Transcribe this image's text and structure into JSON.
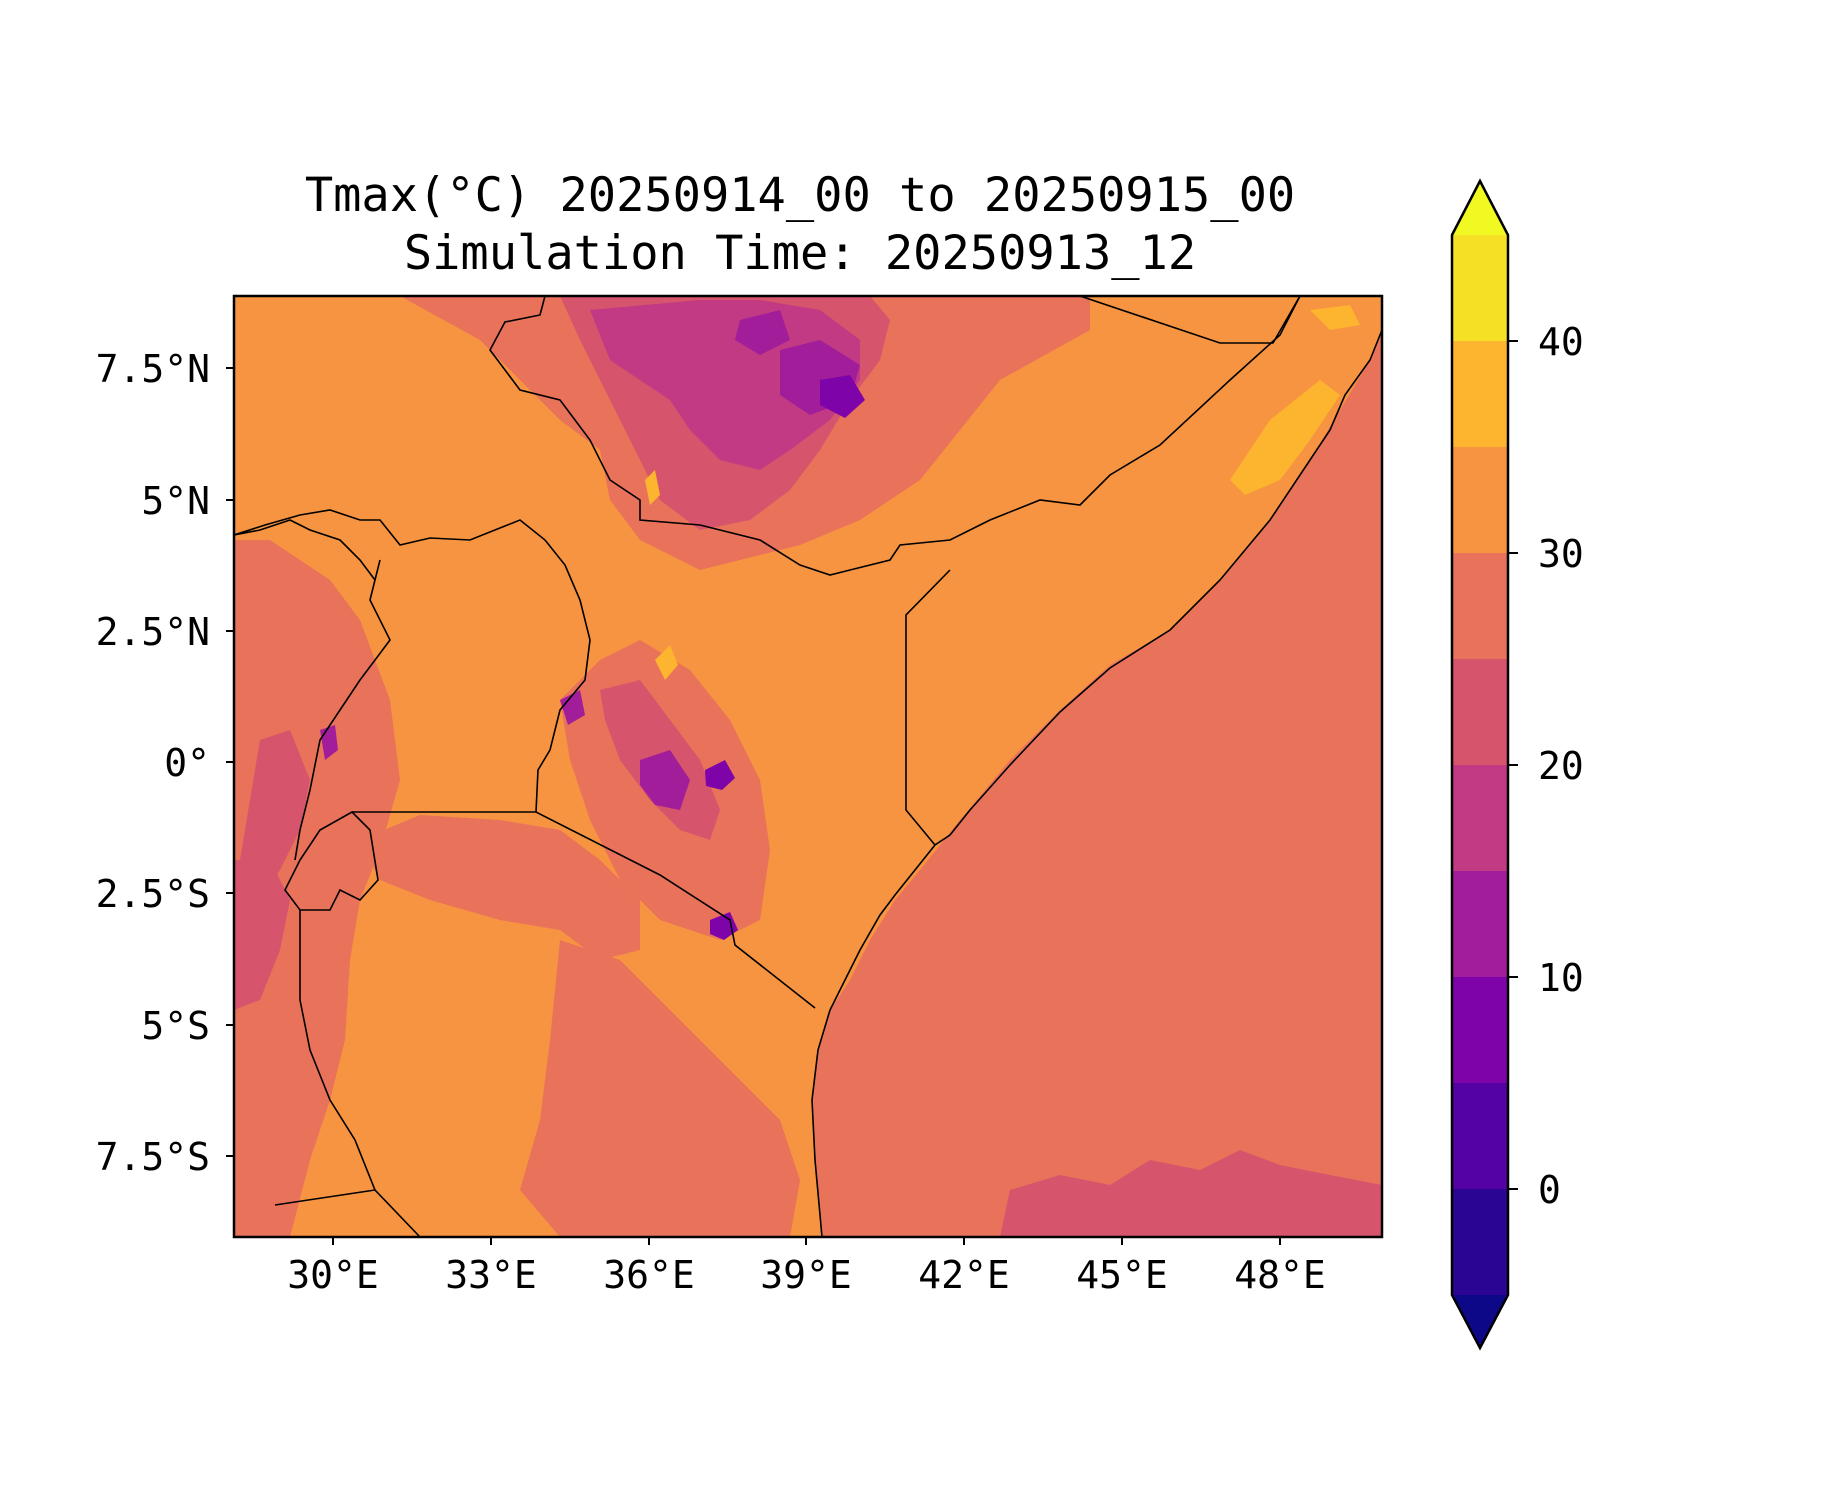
{
  "title": {
    "line1": "Tmax(°C) 20250914_00 to 20250915_00",
    "line2": "Simulation Time: 20250913_12"
  },
  "map": {
    "lat_labels": [
      "7.5°N",
      "5°N",
      "2.5°N",
      "0°",
      "2.5°S",
      "5°S",
      "7.5°S"
    ],
    "lon_labels": [
      "30°E",
      "33°E",
      "36°E",
      "39°E",
      "42°E",
      "45°E",
      "48°E"
    ],
    "lat_values": [
      7.5,
      5,
      2.5,
      0,
      -2.5,
      -5,
      -7.5
    ],
    "lon_values": [
      30,
      33,
      36,
      39,
      42,
      45,
      48
    ],
    "extent": {
      "lon_min": 28.1,
      "lon_max": 49.9,
      "lat_min": -9.0,
      "lat_max": 8.9
    },
    "colormap": "plasma"
  },
  "colorbar": {
    "levels": [
      -5,
      0,
      5,
      10,
      15,
      20,
      25,
      30,
      35,
      40,
      45
    ],
    "tick_labels": [
      "0",
      "10",
      "20",
      "30",
      "40"
    ],
    "tick_values": [
      0,
      10,
      20,
      30,
      40
    ],
    "extend": "both",
    "colors": [
      "#0d0887",
      "#2a0593",
      "#5402a3",
      "#7e03a8",
      "#a21d9a",
      "#c13a83",
      "#d6546c",
      "#e9725a",
      "#f79441",
      "#fdb42f",
      "#f5e026",
      "#f0f921"
    ],
    "under_color": "#0d0887",
    "over_color": "#f0f921"
  },
  "chart_data": {
    "type": "heatmap",
    "variable": "Tmax(°C)",
    "title": "Tmax(°C) 20250914_00 to 20250915_00\nSimulation Time: 20250913_12",
    "x_ticks": [
      "30°E",
      "33°E",
      "36°E",
      "39°E",
      "42°E",
      "45°E",
      "48°E"
    ],
    "y_ticks": [
      "7.5°N",
      "5°N",
      "2.5°N",
      "0°",
      "2.5°S",
      "5°S",
      "7.5°S"
    ],
    "color_range": [
      -5,
      45
    ],
    "dominant_values": {
      "ocean": 27.5,
      "lowland": 32.5,
      "highlands": 17.5
    }
  }
}
